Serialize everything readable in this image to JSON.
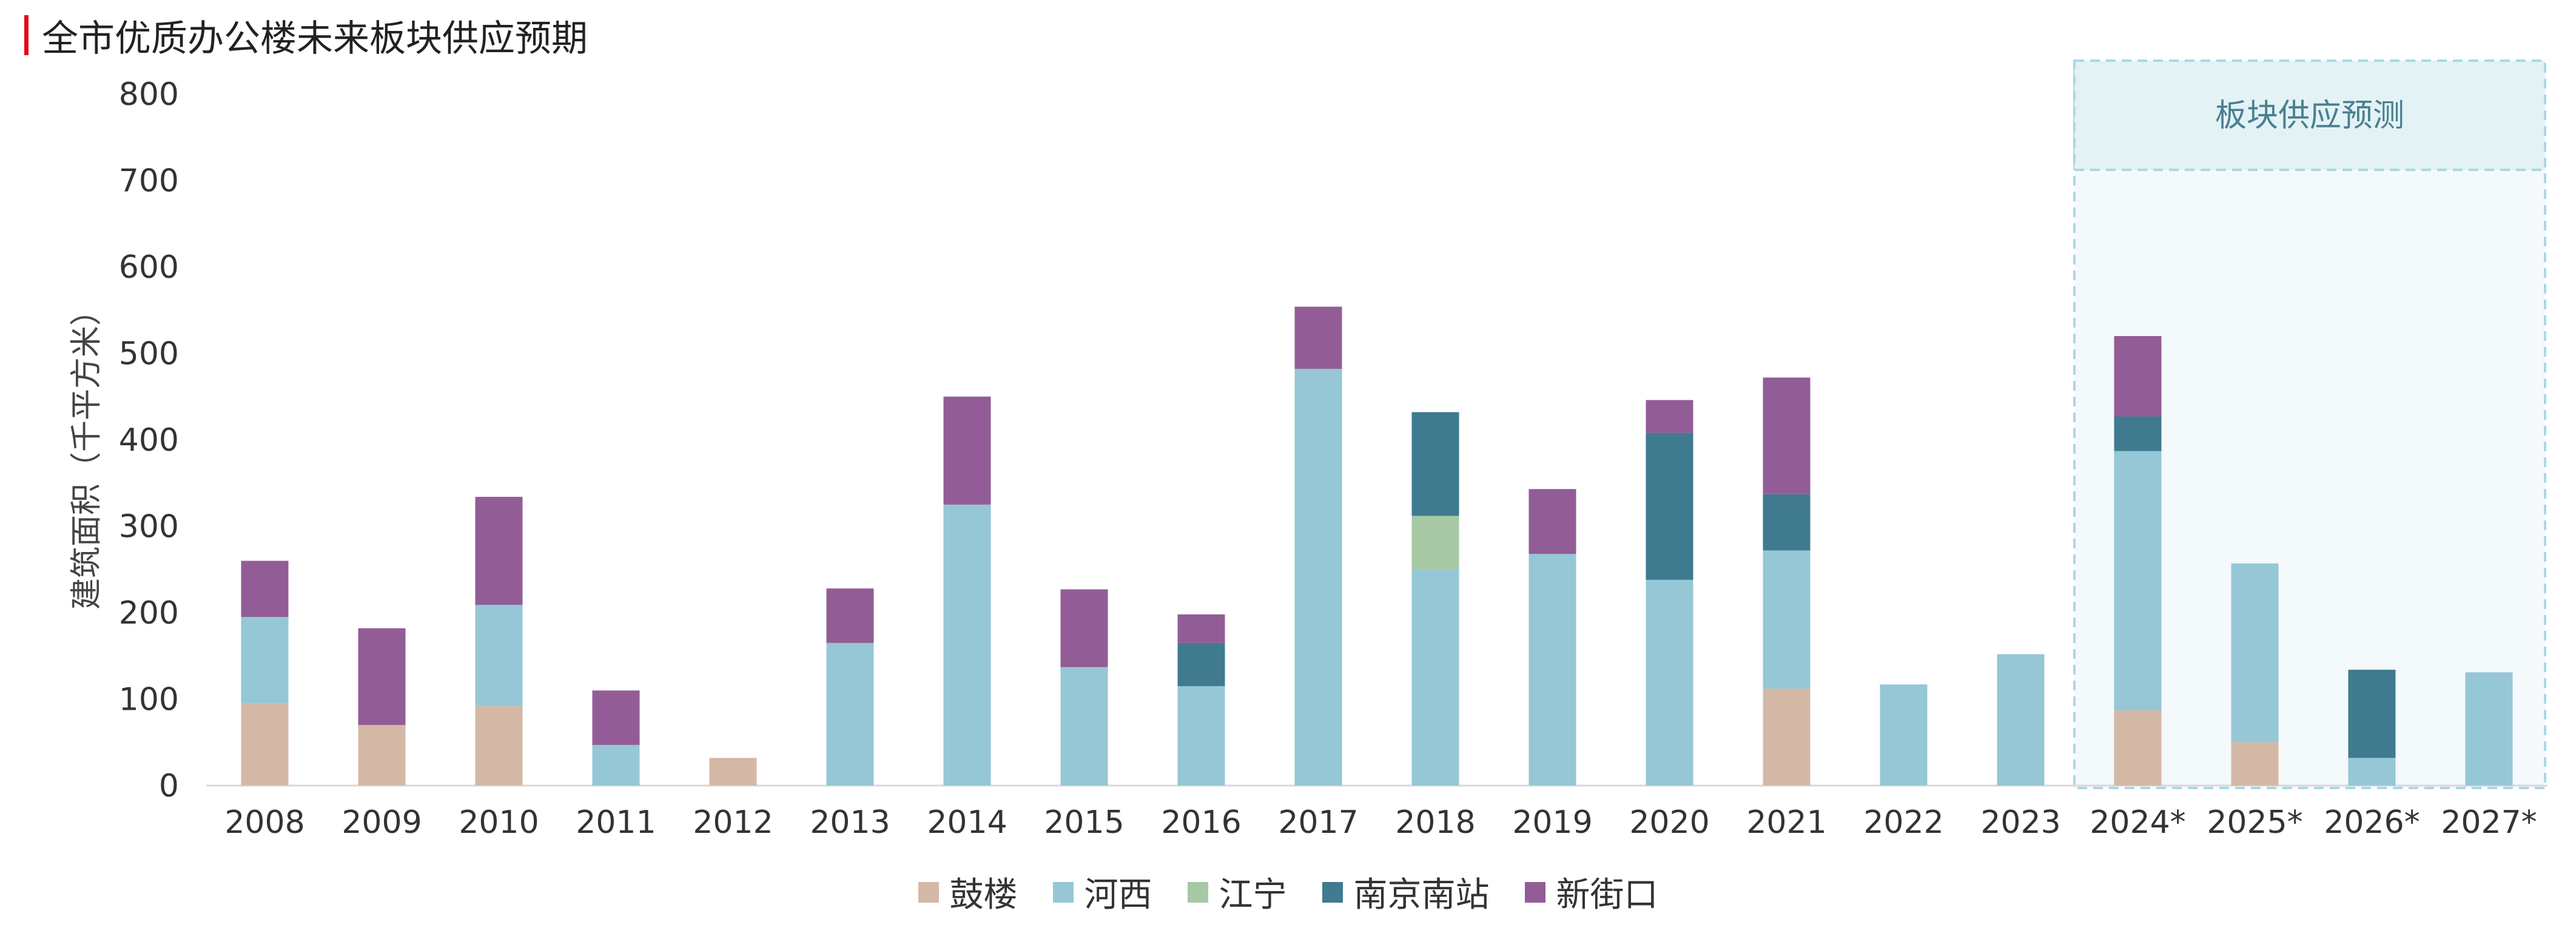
{
  "header": {
    "title": "全市优质办公楼未来板块供应预期",
    "accent_color": "#e30613"
  },
  "chart_data": {
    "type": "bar",
    "stacked": true,
    "ylabel": "建筑面积（千平方米）",
    "xlabel": "",
    "ylim": [
      0,
      800
    ],
    "yticks": [
      0,
      100,
      200,
      300,
      400,
      500,
      600,
      700,
      800
    ],
    "grid": false,
    "legend_position": "bottom-center",
    "categories": [
      "2008",
      "2009",
      "2010",
      "2011",
      "2012",
      "2013",
      "2014",
      "2015",
      "2016",
      "2017",
      "2018",
      "2019",
      "2020",
      "2021",
      "2022",
      "2023",
      "2024*",
      "2025*",
      "2026*",
      "2027*"
    ],
    "series": [
      {
        "name": "鼓楼",
        "color": "#d4b8a6",
        "values": [
          95,
          70,
          92,
          0,
          32,
          0,
          0,
          0,
          0,
          0,
          0,
          0,
          0,
          112,
          0,
          0,
          87,
          50,
          0,
          0
        ]
      },
      {
        "name": "河西",
        "color": "#95c7d6",
        "values": [
          100,
          0,
          117,
          47,
          0,
          165,
          325,
          137,
          115,
          482,
          250,
          268,
          238,
          160,
          117,
          152,
          300,
          207,
          32,
          131
        ]
      },
      {
        "name": "江宁",
        "color": "#a6c8a4",
        "values": [
          0,
          0,
          0,
          0,
          0,
          0,
          0,
          0,
          0,
          0,
          62,
          0,
          0,
          0,
          0,
          0,
          0,
          0,
          0,
          0
        ]
      },
      {
        "name": "南京南站",
        "color": "#3f7a8f",
        "values": [
          0,
          0,
          0,
          0,
          0,
          0,
          0,
          0,
          50,
          0,
          120,
          0,
          170,
          65,
          0,
          0,
          40,
          0,
          102,
          0
        ]
      },
      {
        "name": "新街口",
        "color": "#925d96",
        "values": [
          65,
          112,
          125,
          63,
          0,
          63,
          125,
          90,
          33,
          72,
          0,
          75,
          38,
          135,
          0,
          0,
          93,
          0,
          0,
          0
        ]
      }
    ],
    "forecast": {
      "label": "板块供应预测",
      "start": "2024*",
      "end": "2027*",
      "fill": "#f4f9fb",
      "header_fill": "#e3f2f5",
      "border": "#a9d8e6"
    }
  }
}
